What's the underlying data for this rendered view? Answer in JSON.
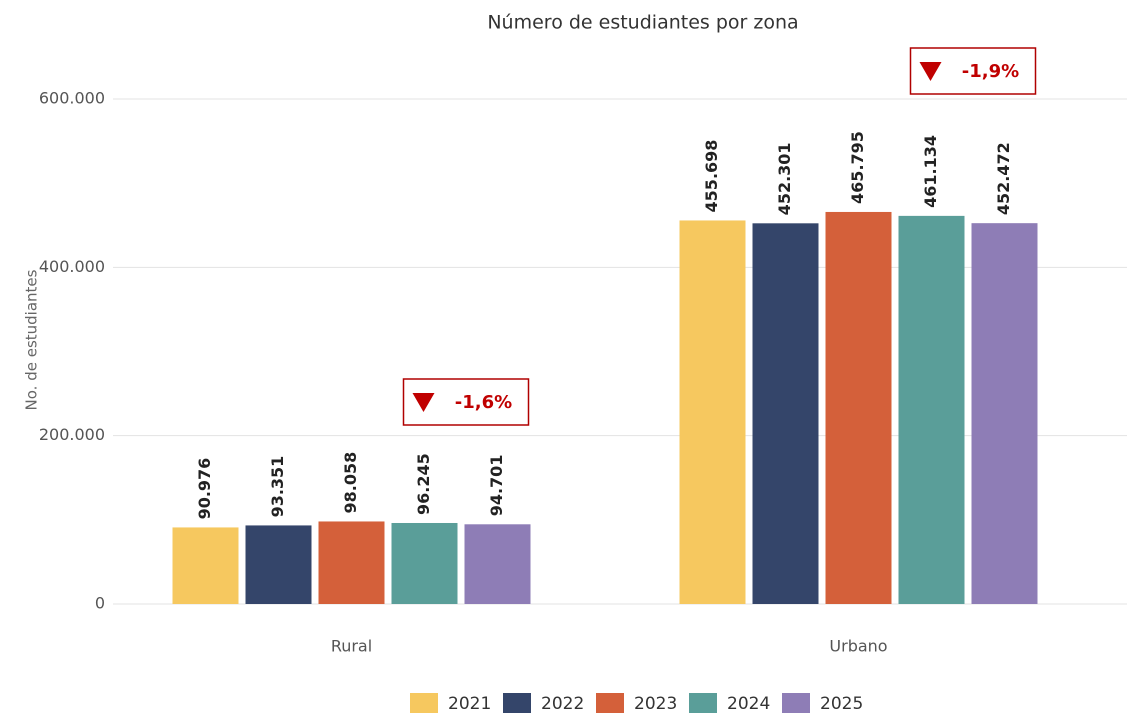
{
  "chart_data": {
    "type": "bar",
    "title": "Número de estudiantes por zona",
    "y_label": "No. de estudiantes",
    "categories": [
      "Rural",
      "Urbano"
    ],
    "series": [
      {
        "name": "2021",
        "color": "#f6c85f",
        "values": [
          90976,
          455698
        ],
        "value_labels": [
          "90.976",
          "455.698"
        ]
      },
      {
        "name": "2022",
        "color": "#34456a",
        "values": [
          93351,
          452301
        ],
        "value_labels": [
          "93.351",
          "452.301"
        ]
      },
      {
        "name": "2023",
        "color": "#d4603a",
        "values": [
          98058,
          465795
        ],
        "value_labels": [
          "98.058",
          "465.795"
        ]
      },
      {
        "name": "2024",
        "color": "#5a9e99",
        "values": [
          96245,
          461134
        ],
        "value_labels": [
          "96.245",
          "461.134"
        ]
      },
      {
        "name": "2025",
        "color": "#8e7db6",
        "values": [
          94701,
          452472
        ],
        "value_labels": [
          "94.701",
          "452.472"
        ]
      }
    ],
    "annotations": [
      "-1,6%",
      "-1,9%"
    ],
    "ylim": [
      0,
      600000
    ],
    "yticks": [
      0,
      {
        "value": 200000,
        "label": "200.000"
      },
      {
        "value": 400000,
        "label": "400.000"
      },
      {
        "value": 600000,
        "label": "600.000"
      }
    ],
    "grid": true,
    "legend": "bottom"
  }
}
